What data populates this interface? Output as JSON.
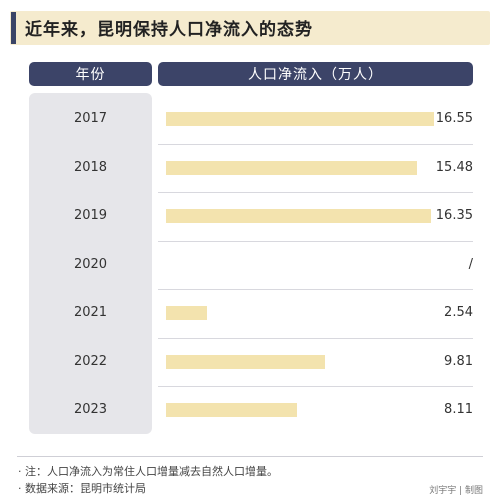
{
  "title": "近年来，昆明保持人口净流入的态势",
  "chart_data": {
    "type": "bar",
    "orientation": "horizontal",
    "column_headers": [
      "年份",
      "人口净流入（万人）"
    ],
    "categories": [
      "2017",
      "2018",
      "2019",
      "2020",
      "2021",
      "2022",
      "2023"
    ],
    "values": [
      16.55,
      15.48,
      16.35,
      null,
      2.54,
      9.81,
      8.11
    ],
    "value_labels": [
      "16.55",
      "15.48",
      "16.35",
      "/",
      "2.54",
      "9.81",
      "8.11"
    ],
    "xlim": [
      0,
      16.55
    ],
    "bar_color": "#f3e3ae"
  },
  "notes": [
    "· 注：人口净流入为常住人口增量减去自然人口增量。",
    "· 数据来源：昆明市统计局"
  ],
  "credit": "刘宇宇 | 制图",
  "colors": {
    "header": "#3c4468",
    "title_band": "#f5ebce",
    "year_column": "#e6e6ea"
  }
}
